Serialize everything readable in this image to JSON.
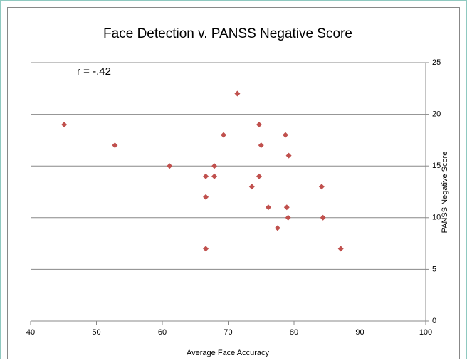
{
  "chart_data": {
    "type": "scatter",
    "title": "Face  Detection v. PANSS Negative Score",
    "annotation": "r = -.42",
    "x_label": "Average Face Accuracy",
    "y_label": "PANSS Negative Score",
    "series": [
      {
        "name": "PANSS Negative Score",
        "color": "#c0504d",
        "x": [
          45.1,
          52.8,
          61.1,
          66.6,
          66.6,
          66.6,
          67.9,
          67.9,
          69.3,
          71.4,
          73.6,
          74.7,
          74.7,
          75.0,
          76.1,
          77.5,
          78.7,
          78.9,
          79.1,
          79.2,
          84.2,
          84.4,
          87.1
        ],
        "values": [
          19,
          17,
          15,
          14,
          12,
          7,
          15,
          14,
          18,
          22,
          13,
          19,
          14,
          17,
          11,
          9,
          18,
          11,
          10,
          16,
          13,
          10,
          7
        ]
      }
    ],
    "xlim": [
      40,
      100
    ],
    "xticks": [
      40,
      50,
      60,
      70,
      80,
      90,
      100
    ],
    "ylim": [
      0,
      25
    ],
    "yticks": [
      0,
      5,
      10,
      15,
      20,
      25
    ],
    "grid": true,
    "y_axis_side": "right"
  }
}
